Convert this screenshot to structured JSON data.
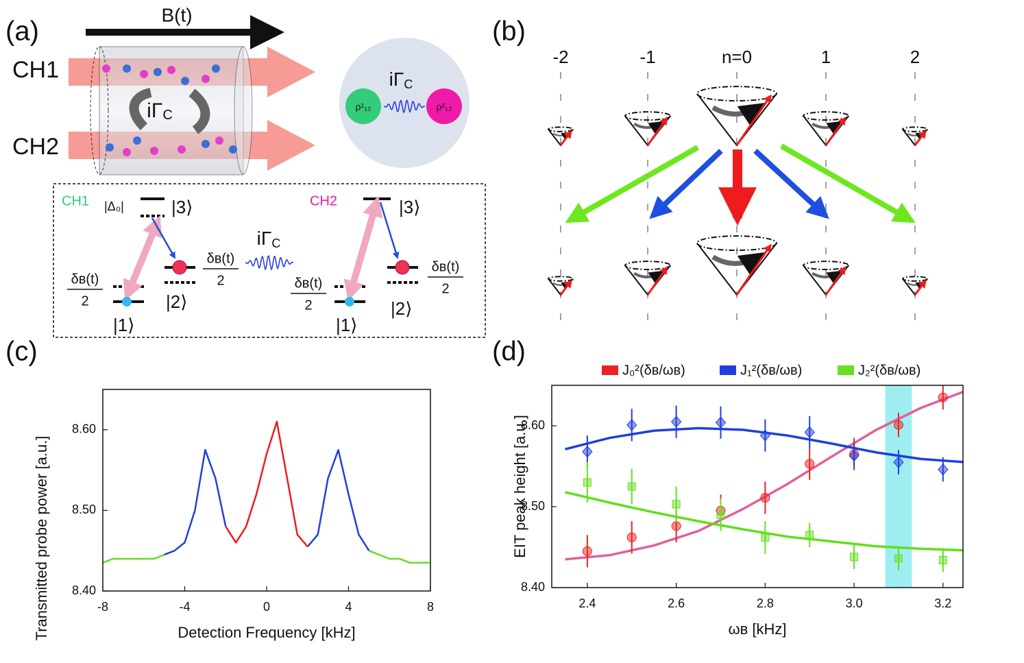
{
  "panel_labels": [
    "(a)",
    "(b)",
    "(c)",
    "(d)"
  ],
  "diagram_a": {
    "field": "B(t)",
    "channels": [
      "CH1",
      "CH2"
    ],
    "couplings": [
      {
        "main": "iΓ",
        "sub": "C"
      },
      {
        "main": "iΓ",
        "sub": "C"
      },
      {
        "main": "iΓ",
        "sub": "C"
      }
    ],
    "coherences": [
      "ρ¹₁₂",
      "ρ²₁₂"
    ],
    "levels": [
      {
        "channel": "CH1",
        "detuning": "|Δ₀|",
        "kets": [
          "|3⟩",
          "|2⟩",
          "|1⟩"
        ],
        "shifts": [
          {
            "num": "δʙ(t)",
            "den": "2"
          },
          {
            "num": "δʙ(t)",
            "den": "2"
          }
        ]
      },
      {
        "channel": "CH2",
        "kets": [
          "|3⟩",
          "|2⟩",
          "|1⟩"
        ],
        "shifts": [
          {
            "num": "δʙ(t)",
            "den": "2"
          },
          {
            "num": "δʙ(t)",
            "den": "2"
          }
        ]
      }
    ]
  },
  "diagram_b": {
    "orders": [
      "-2",
      "-1",
      "n=0",
      "1",
      "2"
    ]
  },
  "chart_data": [
    {
      "type": "line",
      "xlabel": "Detection Frequency [kHz]",
      "ylabel": "Transmitted probe power [a.u.]",
      "x": [
        -8,
        -7.5,
        -7,
        -6.5,
        -6,
        -5.5,
        -5,
        -4.5,
        -4,
        -3.5,
        -3,
        -2.5,
        -2,
        -1.5,
        -1,
        -0.5,
        0,
        0.5,
        1,
        1.5,
        2,
        2.5,
        3,
        3.5,
        4,
        4.5,
        5,
        5.5,
        6,
        6.5,
        7,
        7.5,
        8
      ],
      "series": [
        {
          "color": "#66dd22",
          "values": [
            8.435,
            8.44,
            8.44,
            8.44,
            8.44,
            8.44,
            8.445,
            null,
            null,
            null,
            null,
            null,
            null,
            null,
            null,
            null,
            null,
            null,
            null,
            null,
            null,
            null,
            null,
            null,
            null,
            null,
            8.45,
            8.445,
            8.44,
            8.44,
            8.435,
            8.435,
            8.435
          ]
        },
        {
          "color": "#1f3fe0",
          "values": [
            null,
            null,
            null,
            null,
            null,
            null,
            8.445,
            8.45,
            8.46,
            8.5,
            8.575,
            8.54,
            8.48,
            null,
            null,
            null,
            null,
            null,
            null,
            null,
            8.455,
            8.47,
            8.54,
            8.575,
            8.52,
            8.47,
            8.45,
            null,
            null,
            null,
            null,
            null,
            null
          ]
        },
        {
          "color": "#ee1c1c",
          "values": [
            null,
            null,
            null,
            null,
            null,
            null,
            null,
            null,
            null,
            null,
            null,
            null,
            8.48,
            8.46,
            8.48,
            8.52,
            8.57,
            8.61,
            8.54,
            8.47,
            8.455,
            null,
            null,
            null,
            null,
            null,
            null,
            null,
            null,
            null,
            null,
            null,
            null
          ]
        }
      ],
      "xlim": [
        -8,
        8
      ],
      "xticks": [
        -8,
        -4,
        0,
        4,
        8
      ],
      "ylim": [
        8.4,
        8.65
      ],
      "yticks": [
        {
          "value": 8.4,
          "label": "8.40"
        },
        {
          "value": 8.5,
          "label": "8.50"
        },
        {
          "value": 8.6,
          "label": "8.60"
        }
      ]
    },
    {
      "type": "scatter",
      "xlabel": "ωʙ [kHz]",
      "ylabel": "EIT peak height [a.u.]",
      "x": [
        2.4,
        2.5,
        2.6,
        2.7,
        2.8,
        2.9,
        3.0,
        3.1,
        3.2
      ],
      "series": [
        {
          "name": "J₀²(δʙ/ωʙ)",
          "color": "#ee2222",
          "marker": "circle",
          "values": [
            8.445,
            8.462,
            8.476,
            8.495,
            8.511,
            8.553,
            8.565,
            8.601,
            8.635
          ],
          "errors": [
            0.02,
            0.02,
            0.02,
            0.02,
            0.02,
            0.02,
            0.02,
            0.015,
            0.015
          ]
        },
        {
          "name": "J₁²(δʙ/ωʙ)",
          "color": "#1f3fe0",
          "marker": "diamond",
          "values": [
            8.568,
            8.601,
            8.605,
            8.604,
            8.588,
            8.592,
            8.563,
            8.555,
            8.546
          ],
          "errors": [
            0.02,
            0.02,
            0.02,
            0.02,
            0.02,
            0.02,
            0.015,
            0.015,
            0.015
          ]
        },
        {
          "name": "J₂²(δʙ/ωʙ)",
          "color": "#66e020",
          "marker": "square",
          "values": [
            8.53,
            8.525,
            8.503,
            8.49,
            8.462,
            8.465,
            8.438,
            8.436,
            8.434
          ],
          "errors": [
            0.025,
            0.022,
            0.022,
            0.02,
            0.02,
            0.015,
            0.015,
            0.015,
            0.015
          ]
        }
      ],
      "fit_x": [
        2.35,
        2.45,
        2.55,
        2.65,
        2.75,
        2.85,
        2.95,
        3.05,
        3.15,
        3.25
      ],
      "fits": [
        {
          "color": "#e0609a",
          "values": [
            8.435,
            8.44,
            8.452,
            8.47,
            8.497,
            8.528,
            8.562,
            8.595,
            8.622,
            8.643
          ]
        },
        {
          "color": "#1f3fe0",
          "values": [
            8.571,
            8.585,
            8.594,
            8.597,
            8.595,
            8.588,
            8.578,
            8.567,
            8.559,
            8.555
          ]
        },
        {
          "color": "#5ee01a",
          "values": [
            8.518,
            8.505,
            8.493,
            8.482,
            8.472,
            8.463,
            8.457,
            8.451,
            8.448,
            8.446
          ]
        }
      ],
      "highlight": [
        3.07,
        3.13
      ],
      "highlight_color": "#7ee8ec",
      "xlim": [
        2.32,
        3.245
      ],
      "xticks": [
        2.4,
        2.6,
        2.8,
        {
          "value": 3.0,
          "label": "3.0"
        },
        3.2
      ],
      "ylim": [
        8.4,
        8.65
      ],
      "yticks": [
        {
          "value": 8.4,
          "label": "8.40"
        },
        {
          "value": 8.5,
          "label": "8.50"
        },
        {
          "value": 8.6,
          "label": "8.60"
        }
      ]
    }
  ]
}
